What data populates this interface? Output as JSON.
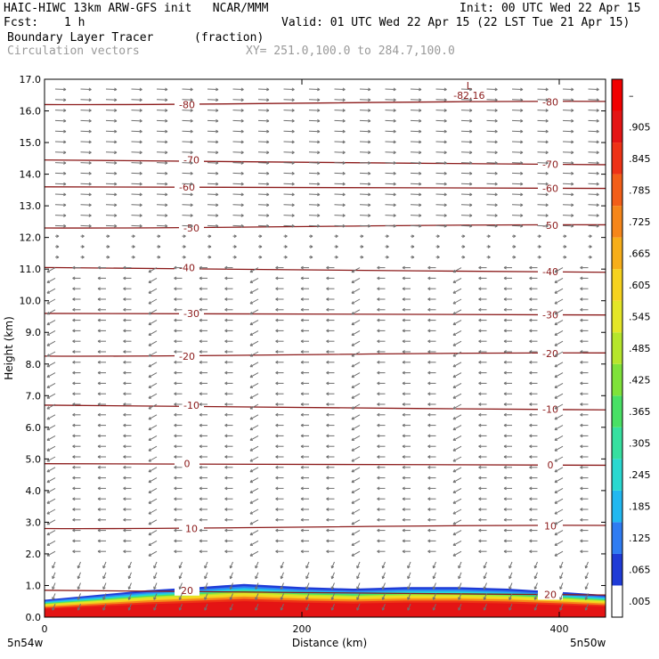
{
  "header": {
    "title_left": "HAIC-HIWC 13km ARW-GFS init   NCAR/MMM",
    "init": "Init: 00 UTC Wed 22 Apr 15",
    "fcst_label": "Fcst:",
    "fcst_value": "1 h",
    "valid": "Valid: 01 UTC Wed 22 Apr 15 (22 LST Tue 21 Apr 15)",
    "field_name": "Boundary Layer Tracer",
    "field_units": "(fraction)",
    "vector_label": "Circulation vectors",
    "xy_label": "XY= 251.0,100.0 to 284.7,100.0"
  },
  "chart_data": {
    "type": "heatmap",
    "title": "Boundary Layer Tracer (fraction)",
    "xlabel": "Distance (km)",
    "ylabel": "Height (km)",
    "xlim": [
      0,
      436
    ],
    "ylim": [
      0,
      17
    ],
    "x_ticks": [
      0,
      200,
      400
    ],
    "y_ticks": [
      "0.0",
      "1.0",
      "2.0",
      "3.0",
      "4.0",
      "5.0",
      "6.0",
      "7.0",
      "8.0",
      "9.0",
      "10.0",
      "11.0",
      "12.0",
      "13.0",
      "14.0",
      "15.0",
      "16.0",
      "17.0"
    ],
    "x_endpoint_labels": {
      "left": "5n54w",
      "right": "5n50w"
    },
    "colorbar_ticks": [
      ".005",
      ".065",
      ".125",
      ".185",
      ".245",
      ".305",
      ".365",
      ".425",
      ".485",
      ".545",
      ".605",
      ".665",
      ".725",
      ".785",
      ".845",
      ".905",
      "–"
    ],
    "colorbar_colors": [
      "#ffffff",
      "#1f3bd6",
      "#2f7cf2",
      "#22b8f0",
      "#2ad8d0",
      "#36e0a0",
      "#49e065",
      "#7fe23a",
      "#b6e62c",
      "#e4e628",
      "#f6d21e",
      "#f7ae1a",
      "#f6861a",
      "#f35e18",
      "#ee3216",
      "#e41414",
      "#f00000"
    ],
    "contour_color": "#8b1a1a",
    "contour_levels_degC": [
      {
        "label": "20",
        "y_km": 0.85
      },
      {
        "label": "10",
        "y_km": 2.8
      },
      {
        "label": "0",
        "y_km": 4.85
      },
      {
        "label": "-10",
        "y_km": 6.7
      },
      {
        "label": "-20",
        "y_km": 8.25
      },
      {
        "label": "-30",
        "y_km": 9.6
      },
      {
        "label": "-40",
        "y_km": 11.05
      },
      {
        "label": "-50",
        "y_km": 12.3
      },
      {
        "label": "-60",
        "y_km": 13.6
      },
      {
        "label": "-70",
        "y_km": 14.45
      },
      {
        "label": "-80",
        "y_km": 16.2
      }
    ],
    "extremum": {
      "marker": "L",
      "value": "-82.16",
      "x_km": 330,
      "y_km": 16.8
    },
    "tracer_top_km": [
      [
        0,
        0.55
      ],
      [
        40,
        0.7
      ],
      [
        80,
        0.85
      ],
      [
        120,
        0.95
      ],
      [
        155,
        1.05
      ],
      [
        200,
        0.95
      ],
      [
        240,
        0.9
      ],
      [
        280,
        0.95
      ],
      [
        320,
        0.95
      ],
      [
        360,
        0.9
      ],
      [
        400,
        0.8
      ],
      [
        436,
        0.7
      ]
    ]
  }
}
